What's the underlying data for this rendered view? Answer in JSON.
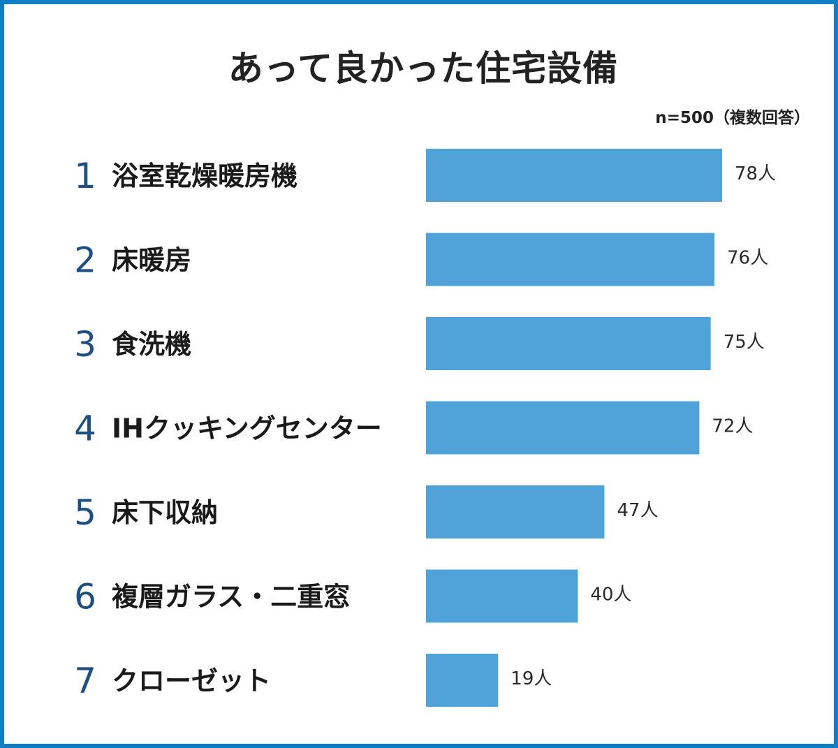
{
  "chart_data": {
    "type": "bar",
    "title": "あって良かった住宅設備",
    "note": "n=500（複数回答）",
    "ranks": [
      "1",
      "2",
      "3",
      "4",
      "5",
      "6",
      "7"
    ],
    "categories": [
      "浴室乾燥暖房機",
      "床暖房",
      "食洗機",
      "IHクッキングセンター",
      "床下収納",
      "複層ガラス・二重窓",
      "クローゼット"
    ],
    "values": [
      78,
      76,
      75,
      72,
      47,
      40,
      19
    ],
    "value_labels": [
      "78人",
      "76人",
      "75人",
      "72人",
      "47人",
      "40人",
      "19人"
    ],
    "xlim": [
      0,
      78
    ],
    "bar_color": "#4fa3d8",
    "grid": false
  }
}
